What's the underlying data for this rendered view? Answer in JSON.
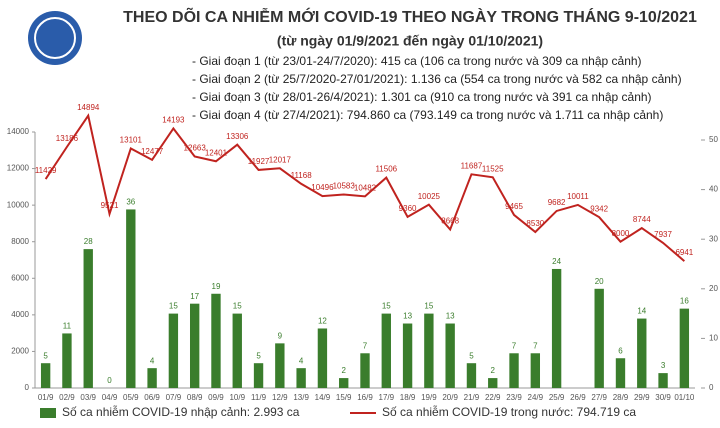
{
  "chart_data": {
    "type": "bar",
    "title": "THEO DÕI CA NHIỄM MỚI COVID-19 THEO NGÀY TRONG THÁNG 9-10/2021",
    "subtitle": "(từ ngày 01/9/2021 đến ngày 01/10/2021)",
    "annotations": [
      "- Giai đoạn 1 (từ 23/01-24/7/2020): 415 ca (106 ca trong nước và 309 ca nhập cảnh)",
      "- Giai đoạn 2 (từ 25/7/2020-27/01/2021): 1.136 ca (554 ca trong nước và 582 ca nhập cảnh)",
      "- Giai đoạn 3 (từ 28/01-26/4/2021): 1.301 ca (910 ca trong nước và 391 ca nhập cảnh)",
      "- Giai đoạn 4 (từ 27/4/2021): 794.860 ca (793.149 ca trong nước và 1.711 ca nhập cảnh)"
    ],
    "categories": [
      "01/9",
      "02/9",
      "03/9",
      "04/9",
      "05/9",
      "06/9",
      "07/9",
      "08/9",
      "09/9",
      "10/9",
      "11/9",
      "12/9",
      "13/9",
      "14/9",
      "15/9",
      "16/9",
      "17/9",
      "18/9",
      "19/9",
      "20/9",
      "21/9",
      "22/9",
      "23/9",
      "24/9",
      "25/9",
      "26/9",
      "27/9",
      "28/9",
      "29/9",
      "30/9",
      "01/10"
    ],
    "series": [
      {
        "name": "Số ca nhiễm COVID-19 nhập cảnh: 2.993 ca",
        "type": "bar",
        "axis": "y2",
        "color": "#3a7d2c",
        "values": [
          5,
          11,
          28,
          0,
          36,
          4,
          15,
          17,
          19,
          15,
          5,
          9,
          4,
          12,
          2,
          7,
          15,
          13,
          15,
          13,
          5,
          2,
          7,
          7,
          24,
          null,
          20,
          6,
          14,
          3,
          16
        ]
      },
      {
        "name": "Số ca nhiễm COVID-19 trong nước: 794.719 ca",
        "type": "line",
        "color": "#c0231f",
        "values": [
          11429,
          13186,
          14894,
          9521,
          13101,
          12477,
          14193,
          12663,
          12401,
          13306,
          11927,
          12017,
          11168,
          10496,
          10583,
          10482,
          11506,
          9360,
          10025,
          8668,
          11687,
          11525,
          9465,
          8530,
          9682,
          10011,
          9342,
          8000,
          8744,
          7937,
          6941
        ]
      }
    ],
    "ylim": [
      0,
      14000
    ],
    "yticks": [
      0,
      2000,
      4000,
      6000,
      8000,
      10000,
      12000,
      14000
    ],
    "y2lim": [
      0,
      50
    ],
    "y2ticks": [
      0,
      10,
      20,
      30,
      40,
      50
    ]
  }
}
